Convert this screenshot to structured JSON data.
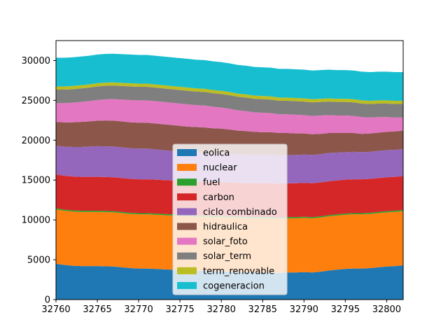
{
  "chart_data": {
    "type": "area",
    "stacked": true,
    "x": [
      32760,
      32761,
      32762,
      32763,
      32764,
      32765,
      32766,
      32767,
      32768,
      32769,
      32770,
      32771,
      32772,
      32773,
      32774,
      32775,
      32776,
      32777,
      32778,
      32779,
      32780,
      32781,
      32782,
      32783,
      32784,
      32785,
      32786,
      32787,
      32788,
      32789,
      32790,
      32791,
      32792,
      32793,
      32794,
      32795,
      32796,
      32797,
      32798,
      32799,
      32800,
      32801,
      32802
    ],
    "xlim": [
      32760,
      32802
    ],
    "ylim": [
      0,
      32500
    ],
    "xticks": [
      32760,
      32765,
      32770,
      32775,
      32780,
      32785,
      32790,
      32795,
      32800
    ],
    "yticks": [
      0,
      5000,
      10000,
      15000,
      20000,
      25000,
      30000
    ],
    "legend_position": "lower center",
    "series": [
      {
        "name": "eolica",
        "color": "#1f77b4",
        "values": [
          4500,
          4350,
          4250,
          4200,
          4200,
          4200,
          4180,
          4150,
          4050,
          3950,
          3900,
          3900,
          3850,
          3800,
          3750,
          3700,
          3650,
          3600,
          3600,
          3550,
          3550,
          3500,
          3450,
          3450,
          3400,
          3400,
          3400,
          3350,
          3400,
          3400,
          3450,
          3400,
          3500,
          3650,
          3750,
          3850,
          3900,
          3900,
          3950,
          4050,
          4150,
          4200,
          4300
        ]
      },
      {
        "name": "nuclear",
        "color": "#ff7f0e",
        "values": [
          6800,
          6800,
          6800,
          6800,
          6800,
          6800,
          6800,
          6800,
          6800,
          6800,
          6800,
          6800,
          6800,
          6800,
          6800,
          6800,
          6800,
          6800,
          6800,
          6800,
          6800,
          6800,
          6800,
          6800,
          6800,
          6800,
          6800,
          6800,
          6800,
          6800,
          6800,
          6800,
          6800,
          6800,
          6800,
          6800,
          6800,
          6800,
          6800,
          6800,
          6800,
          6800,
          6800
        ]
      },
      {
        "name": "fuel",
        "color": "#2ca02c",
        "values": [
          150,
          150,
          150,
          150,
          150,
          150,
          150,
          150,
          150,
          150,
          150,
          150,
          150,
          150,
          150,
          150,
          150,
          150,
          150,
          150,
          150,
          150,
          150,
          150,
          150,
          150,
          150,
          150,
          150,
          150,
          150,
          150,
          150,
          150,
          150,
          150,
          150,
          150,
          150,
          150,
          150,
          150,
          150
        ]
      },
      {
        "name": "carbon",
        "color": "#d62728",
        "values": [
          4250,
          4250,
          4250,
          4250,
          4250,
          4250,
          4250,
          4250,
          4250,
          4250,
          4250,
          4250,
          4250,
          4250,
          4250,
          4250,
          4250,
          4250,
          4250,
          4250,
          4250,
          4250,
          4250,
          4250,
          4250,
          4250,
          4250,
          4250,
          4250,
          4250,
          4250,
          4250,
          4250,
          4250,
          4250,
          4250,
          4250,
          4250,
          4250,
          4250,
          4250,
          4250,
          4250
        ]
      },
      {
        "name": "ciclo combinado",
        "color": "#9467bd",
        "values": [
          3600,
          3650,
          3700,
          3750,
          3800,
          3850,
          3850,
          3850,
          3850,
          3850,
          3850,
          3850,
          3800,
          3750,
          3700,
          3650,
          3650,
          3650,
          3600,
          3600,
          3600,
          3600,
          3550,
          3550,
          3550,
          3550,
          3550,
          3550,
          3550,
          3550,
          3550,
          3550,
          3550,
          3550,
          3500,
          3450,
          3450,
          3400,
          3400,
          3400,
          3400,
          3400,
          3400
        ]
      },
      {
        "name": "hidraulica",
        "color": "#8c564b",
        "values": [
          3000,
          3050,
          3100,
          3150,
          3150,
          3200,
          3250,
          3250,
          3250,
          3250,
          3250,
          3250,
          3250,
          3250,
          3250,
          3250,
          3200,
          3200,
          3200,
          3150,
          3100,
          3050,
          3000,
          2950,
          2900,
          2850,
          2850,
          2800,
          2750,
          2700,
          2650,
          2600,
          2550,
          2500,
          2450,
          2400,
          2350,
          2300,
          2300,
          2300,
          2300,
          2300,
          2300
        ]
      },
      {
        "name": "solar_foto",
        "color": "#e377c2",
        "values": [
          2350,
          2400,
          2450,
          2500,
          2550,
          2600,
          2650,
          2700,
          2750,
          2800,
          2800,
          2800,
          2800,
          2800,
          2800,
          2800,
          2800,
          2750,
          2750,
          2700,
          2650,
          2600,
          2550,
          2500,
          2450,
          2450,
          2400,
          2350,
          2350,
          2350,
          2300,
          2300,
          2300,
          2250,
          2200,
          2200,
          2150,
          2100,
          2000,
          1950,
          1850,
          1750,
          1650
        ]
      },
      {
        "name": "solar_term",
        "color": "#7f7f7f",
        "values": [
          1700,
          1700,
          1700,
          1700,
          1700,
          1700,
          1700,
          1700,
          1700,
          1700,
          1700,
          1700,
          1700,
          1700,
          1700,
          1700,
          1700,
          1700,
          1700,
          1700,
          1700,
          1700,
          1700,
          1700,
          1700,
          1700,
          1700,
          1700,
          1700,
          1700,
          1700,
          1700,
          1700,
          1700,
          1700,
          1700,
          1700,
          1700,
          1700,
          1700,
          1700,
          1700,
          1700
        ]
      },
      {
        "name": "term_renovable",
        "color": "#bcbd22",
        "values": [
          400,
          400,
          400,
          400,
          400,
          400,
          400,
          400,
          400,
          400,
          400,
          400,
          400,
          400,
          400,
          400,
          400,
          400,
          400,
          400,
          400,
          400,
          400,
          400,
          400,
          400,
          400,
          400,
          400,
          400,
          400,
          400,
          400,
          400,
          400,
          400,
          400,
          400,
          400,
          400,
          400,
          400,
          400
        ]
      },
      {
        "name": "cogeneracion",
        "color": "#17becf",
        "values": [
          3600,
          3600,
          3600,
          3600,
          3600,
          3600,
          3600,
          3600,
          3600,
          3600,
          3600,
          3600,
          3600,
          3600,
          3600,
          3600,
          3600,
          3600,
          3600,
          3600,
          3600,
          3600,
          3600,
          3600,
          3600,
          3600,
          3600,
          3600,
          3600,
          3600,
          3600,
          3600,
          3600,
          3600,
          3600,
          3600,
          3600,
          3600,
          3600,
          3600,
          3600,
          3600,
          3600
        ]
      }
    ]
  }
}
